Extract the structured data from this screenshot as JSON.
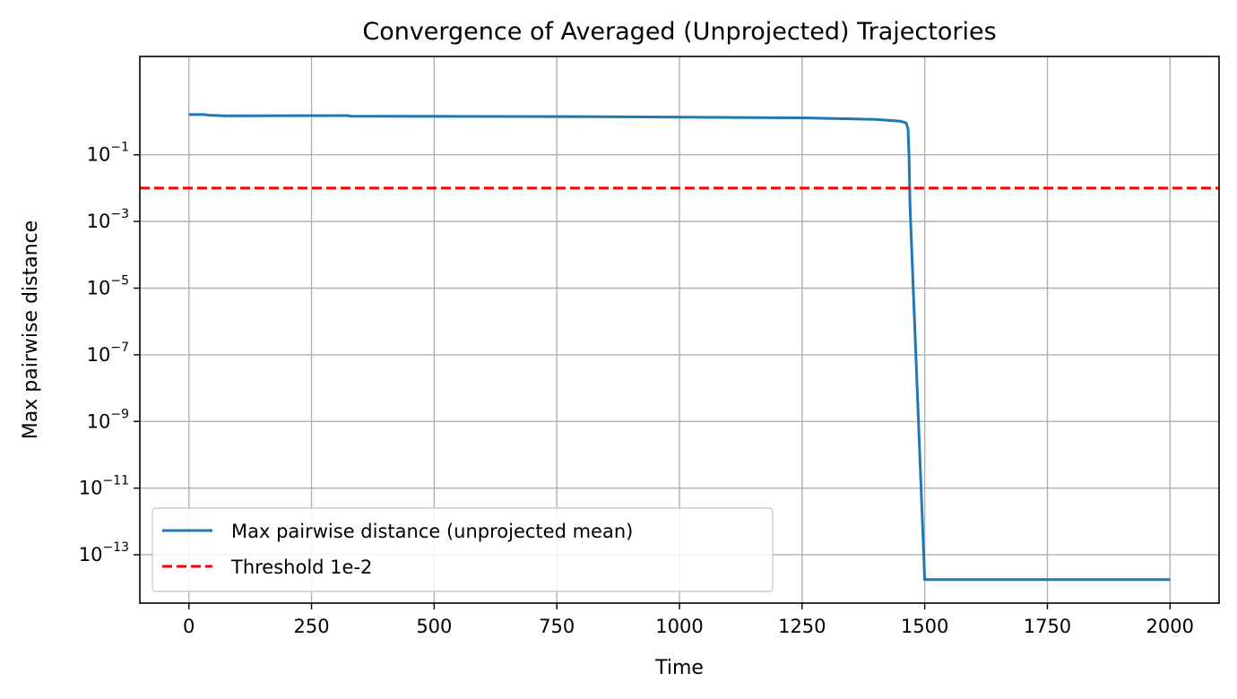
{
  "chart_data": {
    "type": "line",
    "title": "Convergence of Averaged (Unprojected) Trajectories",
    "xlabel": "Time",
    "ylabel": "Max pairwise distance",
    "xlim": [
      -100,
      2100
    ],
    "ylog": true,
    "ylim_exp": [
      -14.45,
      1.95
    ],
    "xticks": [
      0,
      250,
      500,
      750,
      1000,
      1250,
      1500,
      1750,
      2000
    ],
    "yticks_exp": [
      -13,
      -11,
      -9,
      -7,
      -5,
      -3,
      -1
    ],
    "ytick_base": "10",
    "grid": true,
    "legend_position": "lower-left",
    "series": [
      {
        "name": "Max pairwise distance (unprojected mean)",
        "color": "#1f77b4",
        "style": "solid",
        "x": [
          0,
          30,
          40,
          75,
          325,
          330,
          800,
          1250,
          1400,
          1450,
          1462,
          1466,
          1468,
          1470,
          1500,
          2000
        ],
        "y": [
          1.6,
          1.62,
          1.55,
          1.48,
          1.5,
          1.44,
          1.4,
          1.28,
          1.15,
          1.02,
          0.9,
          0.6,
          0.1,
          0.003,
          1.8e-14,
          1.8e-14
        ]
      },
      {
        "name": "Threshold 1e-2",
        "color": "#ff0000",
        "style": "dashed",
        "y_const": 0.01
      }
    ]
  }
}
